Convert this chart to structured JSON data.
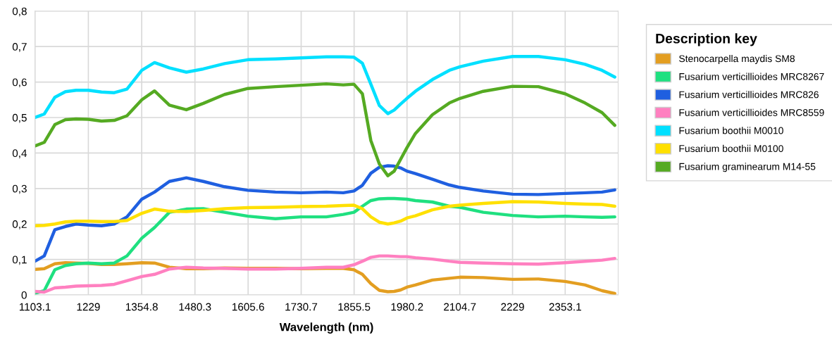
{
  "chart_data": {
    "type": "line",
    "xlabel": "Wavelength (nm)",
    "legend_title": "Description key",
    "legend": "right",
    "grid": true,
    "line_style": "solid",
    "marker": "none",
    "x": [
      1103.1,
      1125,
      1150,
      1175,
      1200,
      1229,
      1260,
      1290,
      1320,
      1355,
      1385,
      1420,
      1460,
      1500,
      1550,
      1605,
      1670,
      1730,
      1790,
      1830,
      1855,
      1875,
      1895,
      1915,
      1935,
      1950,
      1965,
      1980,
      2000,
      2040,
      2080,
      2105,
      2160,
      2229,
      2290,
      2353,
      2400,
      2440,
      2470
    ],
    "xlim": [
      1103.1,
      2478
    ],
    "xticks": [
      1103.1,
      1229,
      1354.8,
      1480.3,
      1605.6,
      1730.7,
      1855.5,
      1980.2,
      2104.7,
      2229,
      2353.1
    ],
    "ylim": [
      0,
      0.8
    ],
    "yticks": [
      0,
      {
        "value": 0.1,
        "label": "0,1"
      },
      {
        "value": 0.2,
        "label": "0,2"
      },
      {
        "value": 0.3,
        "label": "0,3"
      },
      {
        "value": 0.4,
        "label": "0,4"
      },
      {
        "value": 0.5,
        "label": "0,5"
      },
      {
        "value": 0.6,
        "label": "0,6"
      },
      {
        "value": 0.7,
        "label": "0,7"
      },
      {
        "value": 0.8,
        "label": "0,8"
      }
    ],
    "series": [
      {
        "name": "Stenocarpella maydis SM8",
        "color": "#e39e21",
        "values": [
          0.072,
          0.074,
          0.088,
          0.091,
          0.09,
          0.089,
          0.086,
          0.086,
          0.088,
          0.091,
          0.09,
          0.078,
          0.074,
          0.074,
          0.076,
          0.075,
          0.075,
          0.074,
          0.075,
          0.075,
          0.071,
          0.058,
          0.032,
          0.013,
          0.009,
          0.01,
          0.014,
          0.022,
          0.028,
          0.042,
          0.047,
          0.05,
          0.049,
          0.044,
          0.045,
          0.038,
          0.028,
          0.012,
          0.004
        ]
      },
      {
        "name": "Fusarium verticillioides MRC8267",
        "color": "#1fe080",
        "values": [
          0.005,
          0.012,
          0.071,
          0.083,
          0.088,
          0.09,
          0.088,
          0.09,
          0.11,
          0.16,
          0.19,
          0.233,
          0.242,
          0.243,
          0.233,
          0.222,
          0.215,
          0.22,
          0.22,
          0.227,
          0.233,
          0.25,
          0.266,
          0.271,
          0.272,
          0.272,
          0.271,
          0.27,
          0.266,
          0.262,
          0.25,
          0.247,
          0.233,
          0.224,
          0.22,
          0.222,
          0.22,
          0.219,
          0.22
        ]
      },
      {
        "name": "Fusarium verticillioides MRC826",
        "color": "#1f5fe0",
        "values": [
          0.095,
          0.11,
          0.184,
          0.193,
          0.2,
          0.197,
          0.195,
          0.2,
          0.22,
          0.27,
          0.29,
          0.32,
          0.33,
          0.32,
          0.305,
          0.295,
          0.29,
          0.288,
          0.29,
          0.288,
          0.293,
          0.309,
          0.343,
          0.36,
          0.364,
          0.363,
          0.358,
          0.349,
          0.342,
          0.326,
          0.31,
          0.303,
          0.293,
          0.284,
          0.283,
          0.286,
          0.288,
          0.29,
          0.296
        ]
      },
      {
        "name": "Fusarium verticillioides MRC8559",
        "color": "#ff80c0",
        "values": [
          0.01,
          0.008,
          0.02,
          0.022,
          0.025,
          0.026,
          0.027,
          0.03,
          0.04,
          0.052,
          0.058,
          0.073,
          0.078,
          0.076,
          0.075,
          0.073,
          0.073,
          0.075,
          0.078,
          0.078,
          0.085,
          0.095,
          0.106,
          0.11,
          0.11,
          0.109,
          0.108,
          0.108,
          0.105,
          0.101,
          0.095,
          0.092,
          0.09,
          0.088,
          0.087,
          0.091,
          0.095,
          0.098,
          0.103
        ]
      },
      {
        "name": "Fusarium boothii M0010",
        "color": "#00e0ff",
        "values": [
          0.5,
          0.51,
          0.557,
          0.573,
          0.577,
          0.577,
          0.572,
          0.57,
          0.58,
          0.633,
          0.655,
          0.64,
          0.628,
          0.637,
          0.652,
          0.663,
          0.665,
          0.668,
          0.671,
          0.671,
          0.67,
          0.653,
          0.594,
          0.534,
          0.511,
          0.521,
          0.538,
          0.554,
          0.574,
          0.607,
          0.633,
          0.643,
          0.659,
          0.672,
          0.672,
          0.663,
          0.65,
          0.633,
          0.614
        ]
      },
      {
        "name": "Fusarium boothii M0100",
        "color": "#ffe000",
        "values": [
          0.195,
          0.196,
          0.2,
          0.206,
          0.208,
          0.208,
          0.207,
          0.207,
          0.21,
          0.23,
          0.242,
          0.236,
          0.235,
          0.238,
          0.243,
          0.246,
          0.247,
          0.249,
          0.25,
          0.252,
          0.253,
          0.243,
          0.22,
          0.205,
          0.2,
          0.203,
          0.208,
          0.217,
          0.223,
          0.24,
          0.25,
          0.253,
          0.258,
          0.263,
          0.262,
          0.258,
          0.256,
          0.255,
          0.25
        ]
      },
      {
        "name": "Fusarium graminearum M14-55",
        "color": "#55aa22",
        "values": [
          0.42,
          0.43,
          0.48,
          0.494,
          0.496,
          0.495,
          0.49,
          0.492,
          0.505,
          0.55,
          0.575,
          0.535,
          0.522,
          0.54,
          0.565,
          0.582,
          0.587,
          0.591,
          0.595,
          0.592,
          0.594,
          0.567,
          0.435,
          0.369,
          0.336,
          0.349,
          0.382,
          0.415,
          0.455,
          0.508,
          0.541,
          0.554,
          0.574,
          0.588,
          0.587,
          0.567,
          0.541,
          0.514,
          0.478
        ]
      }
    ]
  }
}
